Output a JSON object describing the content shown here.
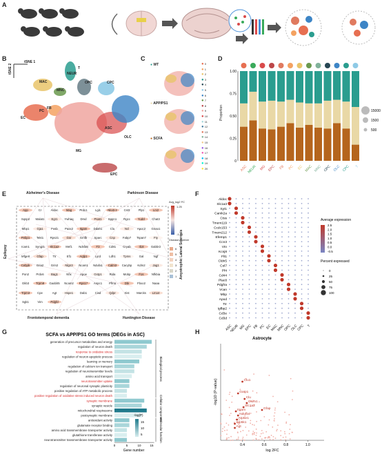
{
  "panels": {
    "a": "A",
    "b": "B",
    "c": "C",
    "d": "D",
    "e": "E",
    "f": "F",
    "g": "G",
    "h": "H"
  },
  "panel_b": {
    "axis_x": "tSNE 1",
    "axis_y": "tSNE 2",
    "clusters": [
      "MAC",
      "T",
      "NEUR",
      "MNC",
      "OPC",
      "CPC",
      "PC",
      "FB",
      "EC",
      "ASC",
      "OLC",
      "MG",
      "EPC"
    ]
  },
  "panel_c": {
    "groups": [
      "WT",
      "APP/PS1",
      "SCFA"
    ],
    "legend_numbers": [
      "0",
      "1",
      "2",
      "3",
      "4",
      "5",
      "6",
      "7",
      "8",
      "9",
      "10",
      "11",
      "12",
      "13",
      "14",
      "15",
      "16",
      "17",
      "18",
      "19",
      "20"
    ]
  },
  "panel_e": {
    "diseases": {
      "top_left": "Alzheimer's Disease",
      "top_right": "Parkinson Disease",
      "left": "Epilepsy",
      "right": "Amyotrophic Lateral Sclerosis",
      "bottom_left": "Frontotemporal dementia",
      "bottom_right": "Huntington Disease"
    },
    "genes": [
      [
        "App",
        "Cr",
        "Aldoc",
        "Mag",
        "Prdx1",
        "Lgi1",
        "Nkx6-2",
        "Cst3",
        "Plp1",
        "Lrx2"
      ],
      [
        "Sqsp2",
        "Malat1",
        "Egr1",
        "Ywhaq",
        "Dmd",
        "Psat1",
        "Sppn1",
        "Rgcc",
        "Yudcl",
        "Chat3"
      ],
      [
        "Mbp1",
        "Gja1",
        "Fosb",
        "Paxx2",
        "Itgam",
        "Ddah1",
        "Clu",
        "Ncl",
        "Apoc2",
        "Gnao1"
      ],
      [
        "Pebp1",
        "Tekt1",
        "Rps21",
        "Gsr",
        "Gmfb",
        "Sparc",
        "Cnp",
        "Fabp7",
        "Tspan7",
        "Fty"
      ],
      [
        "Icam1",
        "Syngr1",
        "Slc1a2",
        "Mef1",
        "Ndsfa5",
        "F3",
        "Cd81",
        "Cryab",
        "Il18",
        "Gabbr2"
      ],
      [
        "Mfge8",
        "Gfap",
        "Ttr",
        "Ef1",
        "Aqlp1",
        "Lyrd",
        "Ldh1",
        "Tpms",
        "Gal",
        "Ngf"
      ],
      [
        "Cebpb",
        "Gria2",
        "Grin2",
        "Nlgn3",
        "Ncam1",
        "Ndufa1",
        "Calm3",
        "Cacybp",
        "Kdm2",
        "Jag1"
      ],
      [
        "Pon2",
        "Prdx6",
        "Bag1",
        "Nfix",
        "Apoe",
        "Gstp1",
        "Rida",
        "Mobp",
        "Fos",
        "Nfkbia"
      ],
      [
        "Gkb3",
        "Trpm8",
        "Gadd45",
        "Ncam2",
        "Rps17",
        "Anpc1",
        "Pfma",
        "Dbi",
        "Fbxo2",
        "Naaa"
      ],
      [
        "Trpm3",
        "Cpe",
        "Agt",
        "Hspe1",
        "Dab1",
        "Cisd",
        "Qdpr",
        "Xist",
        "Marcks",
        "Lmo4"
      ],
      [
        "Sgk1",
        "Vim",
        "Pdgfd",
        "",
        "",
        "",
        "",
        "",
        "",
        ""
      ]
    ],
    "fc_legend_title": "Avg_log2 FC",
    "fc_max": "1.25",
    "fc_min": "-1.25",
    "disease_legend_title": "Disease number",
    "disease_levels": [
      "6",
      "5",
      "4",
      "3",
      "2",
      "1"
    ]
  },
  "panel_f": {
    "genes": [
      "Aldoc",
      "Slc1a3",
      "Syt1",
      "Camk2a",
      "Ctss",
      "Tmem119",
      "Ccdc153",
      "Tmem212",
      "Efemp1",
      "Ccn3",
      "Vtn",
      "Kcnj8",
      "Flt1",
      "Cldn5",
      "Col7",
      "Pf4",
      "Cd44",
      "Plac8",
      "Pdgfra",
      "Vcan",
      "Mbp",
      "Apod",
      "Ttr",
      "Igfbp2",
      "Cd3e",
      "Cd3d"
    ],
    "celltypes": [
      "ASC",
      "NEUR",
      "MG",
      "EPC",
      "FB",
      "PC",
      "EC",
      "MAC",
      "MNC",
      "OPC",
      "OLC",
      "CPC",
      "T"
    ],
    "expr_title": "Average expression",
    "expr_ticks": [
      "2.5",
      "2.0",
      "1.5",
      "1.0",
      "0.5",
      "0.0",
      "-0.5"
    ],
    "pct_title": "Percent expressed",
    "pct_ticks": [
      "0",
      "25",
      "50",
      "75",
      "100"
    ]
  },
  "panel_d": {
    "ylabel": "Proportion",
    "yticks": [
      "0",
      "0.25",
      "0.50",
      "0.75",
      "1.00"
    ],
    "size_legend": [
      "15000",
      "1500",
      "500"
    ],
    "celltypes": [
      "ASC",
      "NEUR",
      "MG",
      "EPC",
      "FB",
      "PC",
      "EC",
      "MAC",
      "MNC",
      "OPC",
      "OLC",
      "CPC",
      "T"
    ],
    "colors": {
      "wt": "#2a9d8f",
      "app": "#e9d8a6",
      "scfa": "#b5651d"
    }
  },
  "chart_data": [
    {
      "type": "bar",
      "title": "",
      "ylabel": "Proportion",
      "categories": [
        "ASC",
        "NEUR",
        "MG",
        "EPC",
        "FB",
        "PC",
        "EC",
        "MAC",
        "MNC",
        "OPC",
        "OLC",
        "CPC",
        "T"
      ],
      "series": [
        {
          "name": "SCFA",
          "values": [
            0.38,
            0.45,
            0.36,
            0.35,
            0.38,
            0.42,
            0.37,
            0.4,
            0.37,
            0.36,
            0.42,
            0.36,
            0.18
          ]
        },
        {
          "name": "APP/PS1",
          "values": [
            0.26,
            0.32,
            0.3,
            0.32,
            0.28,
            0.26,
            0.28,
            0.24,
            0.27,
            0.31,
            0.26,
            0.3,
            0.42
          ]
        },
        {
          "name": "WT",
          "values": [
            0.36,
            0.23,
            0.34,
            0.33,
            0.34,
            0.32,
            0.35,
            0.36,
            0.36,
            0.33,
            0.32,
            0.34,
            0.4
          ]
        }
      ],
      "ylim": [
        0,
        1
      ]
    },
    {
      "type": "bar",
      "title": "SCFA vs APP/PS1 GO terms (DEGs in ASC)",
      "xlabel": "Gene number",
      "xticks": [
        "0",
        "5",
        "10",
        "15"
      ],
      "legend_title": "-log(P)",
      "legend_ticks": [
        "5",
        "10",
        "15"
      ],
      "categories": [
        "generation of precursor metabolites and energy",
        "regulation of neuron death",
        "response to oxidative stress",
        "regulation of neuron apoptotic process",
        "learning or memory",
        "regulation of calcium ion transport",
        "regulation of neurotransmitter levels",
        "amino acid transport",
        "neurotransmitter uptake",
        "regulation of neuronal synaptic plasticity",
        "positive regulation of ATP metabolic process",
        "positive regulation of oxidative stress induced neuron death",
        "synaptic membrane",
        "synaptic vesicle",
        "mitochondrial respirasome",
        "postsynaptic membrane",
        "antioxidant activity",
        "glutamate receptor binding",
        "amino acid transmembrane transporter activity",
        "glutathione transferase activity",
        "neurotransmitter transmembrane transporter activity"
      ],
      "values": [
        15,
        13,
        11,
        11,
        10,
        8,
        8,
        7,
        6,
        6,
        5,
        5,
        12,
        11,
        13,
        11,
        6,
        6,
        5,
        5,
        5
      ],
      "highlighted": [
        "response to oxidative stress",
        "neurotransmitter uptake",
        "positive regulation of oxidative stress induced neuron death",
        "synaptic membrane"
      ],
      "groups": [
        "Biological process",
        "Cellular component",
        "Molecular function"
      ]
    },
    {
      "type": "scatter",
      "title": "Astrocyte",
      "xlabel": "log 2FC",
      "ylabel": "-log10 (P-value)",
      "xticks": [
        "0.4",
        "0.6",
        "0.8",
        "1.0"
      ],
      "labeled_points": [
        "Clu1",
        "Gatp1",
        "Clu",
        "Gsim1",
        "Slc1a2",
        "Gfap",
        "Itgam",
        "Ndufb4",
        "Atp5e1",
        "Atp5k1",
        "Agt"
      ],
      "xlim": [
        0.2,
        1.15
      ]
    }
  ]
}
